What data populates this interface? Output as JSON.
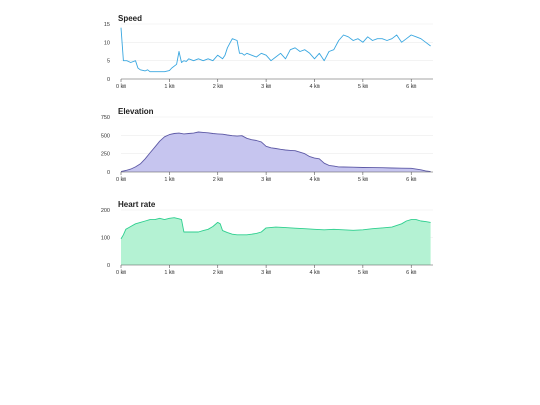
{
  "chart_data": [
    {
      "type": "line",
      "title": "Speed",
      "color": "#3aa7e0",
      "fill": false,
      "xlim": [
        0,
        6.45
      ],
      "ylim": [
        0,
        15
      ],
      "yticks": [
        0,
        5,
        10,
        15
      ],
      "xticks": [
        0,
        1,
        2,
        3,
        4,
        5,
        6
      ],
      "xtick_labels": [
        "0 ㎞",
        "1 ㎞",
        "2 ㎞",
        "3 ㎞",
        "4 ㎞",
        "5 ㎞",
        "6 ㎞"
      ],
      "grid": true,
      "x": [
        0,
        0.05,
        0.12,
        0.2,
        0.3,
        0.35,
        0.4,
        0.5,
        0.55,
        0.6,
        0.7,
        0.8,
        0.9,
        1.0,
        1.05,
        1.15,
        1.2,
        1.25,
        1.3,
        1.35,
        1.4,
        1.5,
        1.6,
        1.7,
        1.8,
        1.9,
        2.0,
        2.1,
        2.15,
        2.2,
        2.3,
        2.4,
        2.45,
        2.5,
        2.55,
        2.6,
        2.7,
        2.8,
        2.9,
        3.0,
        3.1,
        3.2,
        3.3,
        3.4,
        3.5,
        3.6,
        3.7,
        3.8,
        3.9,
        4.0,
        4.1,
        4.2,
        4.3,
        4.4,
        4.5,
        4.6,
        4.7,
        4.8,
        4.9,
        5.0,
        5.1,
        5.2,
        5.3,
        5.4,
        5.5,
        5.6,
        5.7,
        5.8,
        5.9,
        6.0,
        6.1,
        6.2,
        6.3,
        6.4
      ],
      "values": [
        14,
        5,
        5,
        4.5,
        5,
        3,
        2.5,
        2.2,
        2.5,
        2,
        2,
        2,
        2,
        2.3,
        3,
        4,
        7.5,
        4.5,
        5,
        4.8,
        5.5,
        5,
        5.5,
        5,
        5.5,
        5,
        6.5,
        5.5,
        6.5,
        8.5,
        11,
        10.5,
        7,
        7,
        6.5,
        7,
        6.5,
        6,
        7,
        6.5,
        5,
        6,
        7,
        5.5,
        8,
        8.5,
        7.5,
        8,
        7,
        5.5,
        7,
        5,
        7.5,
        8,
        10.5,
        12,
        11.5,
        10.5,
        11,
        10,
        11.5,
        10.5,
        11,
        11,
        10.5,
        11,
        12,
        10,
        11,
        12,
        11.5,
        11,
        10,
        9
      ]
    },
    {
      "type": "area",
      "title": "Elevation",
      "color": "#5e5aa6",
      "fill": "#c6c5ef",
      "xlim": [
        0,
        6.45
      ],
      "ylim": [
        0,
        750
      ],
      "yticks": [
        0,
        250,
        500,
        750
      ],
      "xticks": [
        0,
        1,
        2,
        3,
        4,
        5,
        6
      ],
      "xtick_labels": [
        "0 ㎞",
        "1 ㎞",
        "2 ㎞",
        "3 ㎞",
        "4 ㎞",
        "5 ㎞",
        "6 ㎞"
      ],
      "grid": true,
      "x": [
        0,
        0.1,
        0.2,
        0.3,
        0.4,
        0.5,
        0.6,
        0.7,
        0.8,
        0.9,
        1.0,
        1.1,
        1.2,
        1.3,
        1.4,
        1.5,
        1.6,
        1.7,
        1.8,
        1.9,
        2.0,
        2.1,
        2.2,
        2.3,
        2.4,
        2.5,
        2.6,
        2.7,
        2.8,
        2.9,
        3.0,
        3.1,
        3.2,
        3.3,
        3.4,
        3.5,
        3.6,
        3.7,
        3.8,
        3.9,
        4.0,
        4.1,
        4.2,
        4.3,
        4.4,
        4.5,
        4.6,
        4.8,
        5.0,
        5.2,
        5.4,
        5.6,
        5.8,
        6.0,
        6.1,
        6.2,
        6.3,
        6.4
      ],
      "values": [
        5,
        20,
        40,
        70,
        110,
        180,
        260,
        340,
        420,
        480,
        510,
        525,
        530,
        520,
        525,
        530,
        545,
        540,
        535,
        525,
        520,
        515,
        505,
        495,
        490,
        495,
        460,
        440,
        430,
        410,
        350,
        330,
        320,
        310,
        300,
        295,
        290,
        270,
        250,
        210,
        190,
        180,
        120,
        90,
        80,
        70,
        68,
        65,
        62,
        60,
        58,
        55,
        52,
        50,
        40,
        30,
        15,
        5
      ]
    },
    {
      "type": "area",
      "title": "Heart rate",
      "color": "#2ecf8f",
      "fill": "#b4f2d3",
      "xlim": [
        0,
        6.45
      ],
      "ylim": [
        0,
        200
      ],
      "yticks": [
        0,
        100,
        200
      ],
      "xticks": [
        0,
        1,
        2,
        3,
        4,
        5,
        6
      ],
      "xtick_labels": [
        "0 ㎞",
        "1 ㎞",
        "2 ㎞",
        "3 ㎞",
        "4 ㎞",
        "5 ㎞",
        "6 ㎞"
      ],
      "grid": true,
      "x": [
        0,
        0.05,
        0.1,
        0.2,
        0.3,
        0.4,
        0.5,
        0.6,
        0.7,
        0.8,
        0.9,
        1.0,
        1.1,
        1.2,
        1.25,
        1.3,
        1.4,
        1.5,
        1.6,
        1.7,
        1.8,
        1.9,
        2.0,
        2.05,
        2.1,
        2.2,
        2.3,
        2.4,
        2.5,
        2.6,
        2.7,
        2.8,
        2.9,
        3.0,
        3.2,
        3.4,
        3.6,
        3.8,
        4.0,
        4.2,
        4.4,
        4.6,
        4.8,
        5.0,
        5.2,
        5.4,
        5.6,
        5.8,
        5.9,
        6.0,
        6.1,
        6.2,
        6.3,
        6.4
      ],
      "values": [
        95,
        110,
        130,
        140,
        150,
        155,
        160,
        165,
        165,
        170,
        165,
        170,
        172,
        168,
        165,
        120,
        120,
        120,
        120,
        125,
        130,
        140,
        155,
        150,
        125,
        118,
        112,
        110,
        110,
        110,
        112,
        115,
        120,
        135,
        138,
        136,
        134,
        132,
        130,
        128,
        130,
        128,
        126,
        128,
        132,
        135,
        138,
        150,
        160,
        165,
        165,
        160,
        158,
        155
      ]
    }
  ]
}
